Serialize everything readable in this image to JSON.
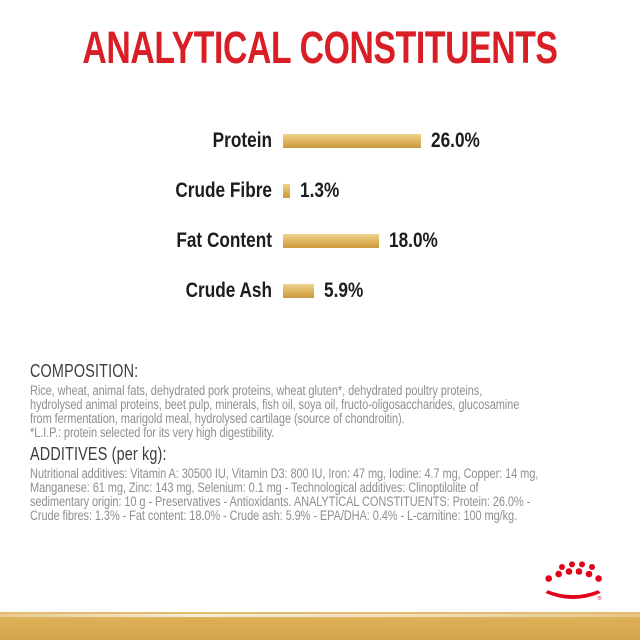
{
  "page": {
    "title": "ANALYTICAL CONSTITUENTS",
    "title_color": "#d91e26"
  },
  "chart_data": {
    "type": "bar",
    "orientation": "horizontal",
    "categories": [
      "Protein",
      "Crude Fibre",
      "Fat Content",
      "Crude Ash"
    ],
    "values": [
      26.0,
      1.3,
      18.0,
      5.9
    ],
    "value_labels": [
      "26.0%",
      "1.3%",
      "18.0%",
      "5.9%"
    ],
    "unit": "%",
    "xlim": [
      0,
      26
    ],
    "grid": false,
    "legend": "none",
    "bar_color_top": "#eed48f",
    "bar_color_bottom": "#c9983f",
    "label_color": "#1d1d1b"
  },
  "composition": {
    "heading": "COMPOSITION:",
    "body": "Rice, wheat, animal fats, dehydrated pork proteins, wheat gluten*, dehydrated poultry proteins,\nhydrolysed animal proteins, beet pulp, minerals, fish oil, soya oil, fructo-oligosaccharides, glucosamine\nfrom fermentation, marigold meal, hydrolysed cartilage (source of chondroitin).\n*L.I.P.: protein selected for its very high digestibility."
  },
  "additives": {
    "heading": "ADDITIVES (per kg):",
    "body": "Nutritional additives: Vitamin A: 30500 IU, Vitamin D3: 800 IU, Iron: 47 mg, Iodine: 4.7 mg, Copper: 14 mg,\nManganese: 61 mg, Zinc: 143 mg, Selenium: 0.1 mg - Technological additives: Clinoptilolite of\nsedimentary origin: 10 g - Preservatives - Antioxidants. ANALYTICAL CONSTITUENTS: Protein: 26.0% -\nCrude fibres: 1.3% - Fat content: 18.0% - Crude ash: 5.9% - EPA/DHA: 0.4% - L-carnitine: 100 mg/kg."
  },
  "footer": {
    "brand_logo": "royal-canin-crown-icon",
    "logo_color": "#e2001a",
    "band_color": "#d8a94f",
    "registered_mark": "®"
  }
}
